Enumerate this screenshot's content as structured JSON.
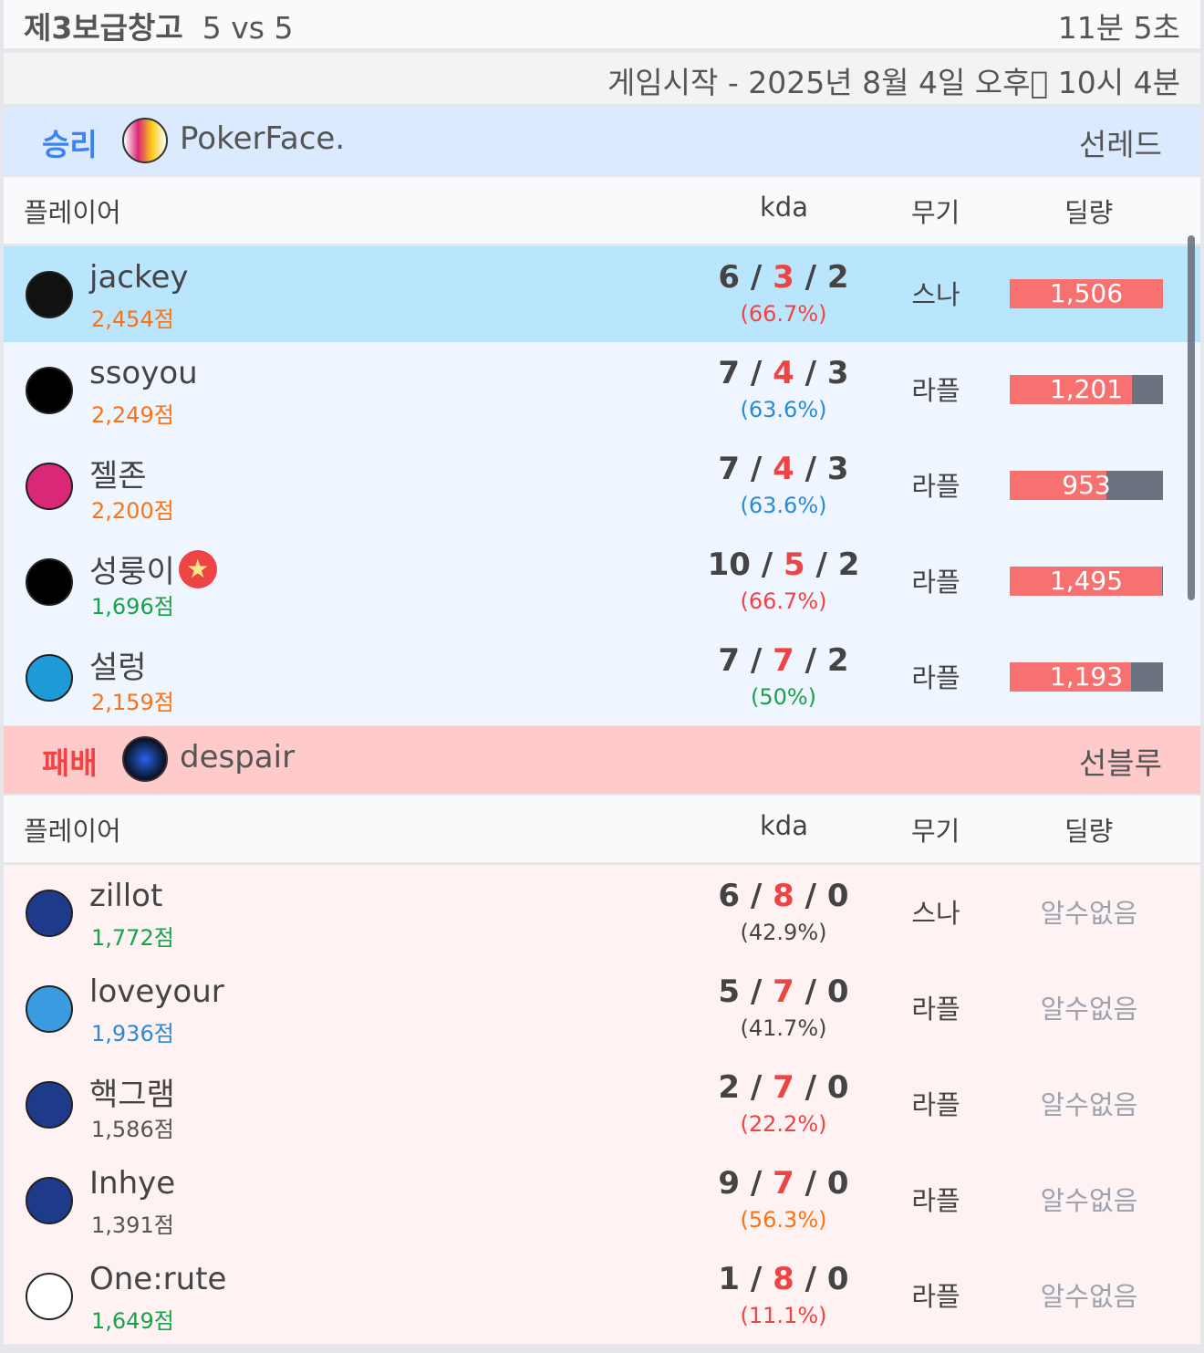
{
  "header": {
    "map": "제3보급창고",
    "mode": "5 vs 5",
    "duration": "11분 5초"
  },
  "start_time": "게임시작 - 2025년 8월 4일 오후\u0000 10시 4분",
  "columns": {
    "player": "플레이어",
    "kda": "kda",
    "weapon": "무기",
    "damage": "딜량"
  },
  "colors": {
    "win_bg": "#dbeafe",
    "lose_bg": "#fecaca",
    "win_rows": "#eff6ff",
    "lose_rows": "#fef2f2",
    "highlight": "#bae6fd",
    "damage_bar": "#f87171",
    "damage_track": "#6b7280"
  },
  "teams": [
    {
      "result": "승리",
      "result_color": "#3b82f6",
      "name": "PokerFace.",
      "side": "선레드",
      "logo": "joker-card-icon",
      "players": [
        {
          "name": "jackey",
          "score": "2,454점",
          "score_color": "#f97316",
          "k": "6",
          "d": "3",
          "a": "2",
          "pct": "(66.7%)",
          "pct_color": "#ef4444",
          "weapon": "스나",
          "damage": "1,506",
          "damage_value": 1506,
          "damage_fraction": 1.0,
          "avatar": "penguin-icon",
          "avatar_color": "#111",
          "highlight": true
        },
        {
          "name": "ssoyou",
          "score": "2,249점",
          "score_color": "#f97316",
          "k": "7",
          "d": "4",
          "a": "3",
          "pct": "(63.6%)",
          "pct_color": "#2b8ad6",
          "weapon": "라플",
          "damage": "1,201",
          "damage_value": 1201,
          "damage_fraction": 0.797,
          "avatar": "red-slash-icon",
          "avatar_color": "#000"
        },
        {
          "name": "젤존",
          "score": "2,200점",
          "score_color": "#f97316",
          "k": "7",
          "d": "4",
          "a": "3",
          "pct": "(63.6%)",
          "pct_color": "#2b8ad6",
          "weapon": "라플",
          "damage": "953",
          "damage_value": 953,
          "damage_fraction": 0.633,
          "avatar": "joker-card-icon",
          "avatar_color": "#db2777"
        },
        {
          "name": "성룽이",
          "badge": "★",
          "score": "1,696점",
          "score_color": "#16a34a",
          "k": "10",
          "d": "5",
          "a": "2",
          "pct": "(66.7%)",
          "pct_color": "#ef4444",
          "weapon": "라플",
          "damage": "1,495",
          "damage_value": 1495,
          "damage_fraction": 0.993,
          "avatar": "red-slash-icon",
          "avatar_color": "#000"
        },
        {
          "name": "설렁",
          "score": "2,159점",
          "score_color": "#f97316",
          "k": "7",
          "d": "7",
          "a": "2",
          "pct": "(50%)",
          "pct_color": "#16a34a",
          "weapon": "라플",
          "damage": "1,193",
          "damage_value": 1193,
          "damage_fraction": 0.792,
          "avatar": "fleur-de-lis-icon",
          "avatar_color": "#1d9bd7"
        }
      ]
    },
    {
      "result": "패배",
      "result_color": "#ef4444",
      "name": "despair",
      "side": "선블루",
      "logo": "blue-dragon-icon",
      "players": [
        {
          "name": "zillot",
          "score": "1,772점",
          "score_color": "#16a34a",
          "k": "6",
          "d": "8",
          "a": "0",
          "pct": "(42.9%)",
          "pct_color": "#444",
          "weapon": "스나",
          "damage": "알수없음",
          "avatar": "blue-dragon-icon",
          "avatar_color": "#1e3a8a"
        },
        {
          "name": "loveyour",
          "score": "1,936점",
          "score_color": "#2b8ad6",
          "k": "5",
          "d": "7",
          "a": "0",
          "pct": "(41.7%)",
          "pct_color": "#444",
          "weapon": "라플",
          "damage": "알수없음",
          "avatar": "blue-emblem-icon",
          "avatar_color": "#3b9be0"
        },
        {
          "name": "핵그램",
          "score": "1,586점",
          "score_color": "#555",
          "k": "2",
          "d": "7",
          "a": "0",
          "pct": "(22.2%)",
          "pct_color": "#ef4444",
          "weapon": "라플",
          "damage": "알수없음",
          "avatar": "blue-dragon-icon",
          "avatar_color": "#1e3a8a"
        },
        {
          "name": "Inhye",
          "score": "1,391점",
          "score_color": "#555",
          "k": "9",
          "d": "7",
          "a": "0",
          "pct": "(56.3%)",
          "pct_color": "#f97316",
          "weapon": "라플",
          "damage": "알수없음",
          "avatar": "blue-dragon-icon",
          "avatar_color": "#1e3a8a"
        },
        {
          "name": "One:rute",
          "score": "1,649점",
          "score_color": "#16a34a",
          "k": "1",
          "d": "8",
          "a": "0",
          "pct": "(11.1%)",
          "pct_color": "#ef4444",
          "weapon": "라플",
          "damage": "알수없음",
          "avatar": "gunman-icon",
          "avatar_color": "#fff"
        }
      ]
    }
  ]
}
